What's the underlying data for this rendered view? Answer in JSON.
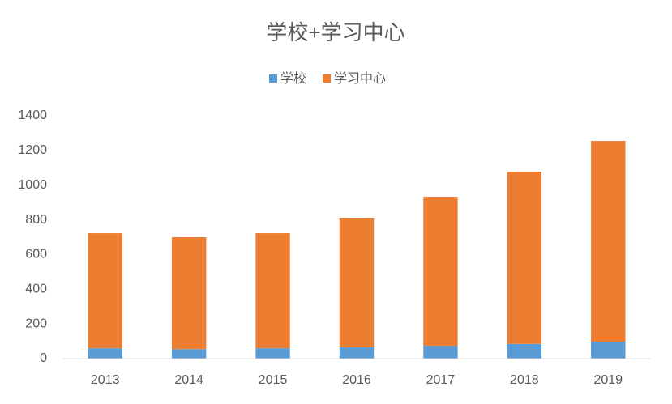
{
  "chart_data": {
    "type": "bar",
    "stacked": true,
    "title": "学校+学习中心",
    "categories": [
      "2013",
      "2014",
      "2015",
      "2016",
      "2017",
      "2018",
      "2019"
    ],
    "series": [
      {
        "name": "学校",
        "color": "#5b9bd5",
        "values": [
          60,
          55,
          60,
          65,
          75,
          85,
          98
        ]
      },
      {
        "name": "学习中心",
        "color": "#ed7d31",
        "values": [
          663,
          645,
          663,
          747,
          858,
          993,
          1157
        ]
      }
    ],
    "ylim": [
      0,
      1400
    ],
    "yticks": [
      0,
      200,
      400,
      600,
      800,
      1000,
      1200,
      1400
    ],
    "grid": false,
    "legend": "top"
  }
}
